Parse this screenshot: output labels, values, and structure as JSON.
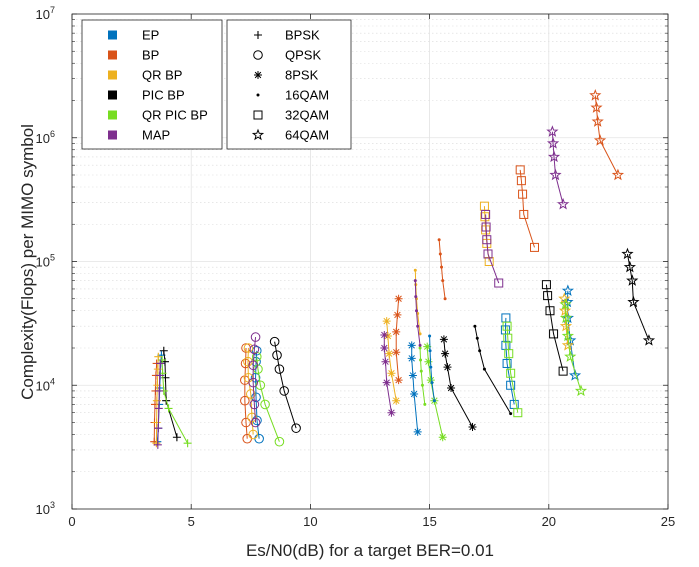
{
  "chart_data": {
    "type": "line",
    "xlabel": "Es/N0(dB) for a target BER=0.01",
    "ylabel": "Complexity(Flops) per MIMO symbol",
    "xlim": [
      0,
      25
    ],
    "ylim": [
      1000,
      10000000
    ],
    "y_scale": "log",
    "grid": true,
    "x_ticks": [
      "0",
      "5",
      "10",
      "15",
      "20",
      "25"
    ],
    "y_ticks": [
      {
        "base": "10",
        "exp": "3"
      },
      {
        "base": "10",
        "exp": "4"
      },
      {
        "base": "10",
        "exp": "5"
      },
      {
        "base": "10",
        "exp": "6"
      },
      {
        "base": "10",
        "exp": "7"
      }
    ],
    "legend_algorithms": [
      {
        "name": "EP",
        "color": "#0072BD"
      },
      {
        "name": "BP",
        "color": "#D95319"
      },
      {
        "name": "QR BP",
        "color": "#EDB120"
      },
      {
        "name": "PIC BP",
        "color": "#000000"
      },
      {
        "name": "QR PIC BP",
        "color": "#77DD22"
      },
      {
        "name": "MAP",
        "color": "#7E2F8E"
      }
    ],
    "legend_modulations": [
      {
        "name": "BPSK",
        "marker": "plus"
      },
      {
        "name": "QPSK",
        "marker": "circle"
      },
      {
        "name": "8PSK",
        "marker": "asterisk"
      },
      {
        "name": "16QAM",
        "marker": "point"
      },
      {
        "name": "32QAM",
        "marker": "square"
      },
      {
        "name": "64QAM",
        "marker": "star"
      }
    ],
    "legend_placement": "top-left",
    "series": [
      {
        "algorithm": "EP",
        "modulation": "BPSK",
        "points": [
          [
            3.75,
            17500
          ],
          [
            3.72,
            15000
          ],
          [
            3.7,
            12000
          ],
          [
            3.68,
            9500
          ],
          [
            3.66,
            7000
          ],
          [
            3.62,
            4500
          ],
          [
            3.58,
            3500
          ]
        ]
      },
      {
        "algorithm": "BP",
        "modulation": "BPSK",
        "points": [
          [
            3.55,
            15000
          ],
          [
            3.52,
            12000
          ],
          [
            3.5,
            9000
          ],
          [
            3.48,
            7000
          ],
          [
            3.46,
            5000
          ],
          [
            3.45,
            3500
          ]
        ]
      },
      {
        "algorithm": "QR BP",
        "modulation": "BPSK",
        "points": [
          [
            3.62,
            17000
          ],
          [
            3.6,
            13500
          ],
          [
            3.58,
            10000
          ],
          [
            3.56,
            7500
          ],
          [
            3.55,
            5000
          ],
          [
            3.54,
            3400
          ]
        ]
      },
      {
        "algorithm": "PIC BP",
        "modulation": "BPSK",
        "points": [
          [
            3.85,
            19000
          ],
          [
            3.9,
            15500
          ],
          [
            3.92,
            11500
          ],
          [
            3.95,
            7500
          ],
          [
            4.4,
            3800
          ]
        ]
      },
      {
        "algorithm": "QR PIC BP",
        "modulation": "BPSK",
        "points": [
          [
            3.78,
            16000
          ],
          [
            3.8,
            12500
          ],
          [
            3.85,
            9000
          ],
          [
            4.05,
            6500
          ],
          [
            4.85,
            3400
          ]
        ]
      },
      {
        "algorithm": "MAP",
        "modulation": "BPSK",
        "points": [
          [
            3.7,
            15000
          ],
          [
            3.68,
            12000
          ],
          [
            3.66,
            9000
          ],
          [
            3.64,
            6500
          ],
          [
            3.62,
            4500
          ],
          [
            3.6,
            3300
          ]
        ]
      },
      {
        "algorithm": "EP",
        "modulation": "QPSK",
        "points": [
          [
            7.75,
            19000
          ],
          [
            7.72,
            15500
          ],
          [
            7.7,
            11500
          ],
          [
            7.72,
            8000
          ],
          [
            7.76,
            5200
          ],
          [
            7.85,
            3700
          ]
        ]
      },
      {
        "algorithm": "BP",
        "modulation": "QPSK",
        "points": [
          [
            7.3,
            20000
          ],
          [
            7.28,
            15000
          ],
          [
            7.25,
            11000
          ],
          [
            7.25,
            7500
          ],
          [
            7.3,
            5000
          ],
          [
            7.35,
            3700
          ]
        ]
      },
      {
        "algorithm": "QR BP",
        "modulation": "QPSK",
        "points": [
          [
            7.4,
            20000
          ],
          [
            7.38,
            15500
          ],
          [
            7.4,
            11500
          ],
          [
            7.5,
            8500
          ],
          [
            7.55,
            5500
          ],
          [
            7.6,
            4000
          ]
        ]
      },
      {
        "algorithm": "PIC BP",
        "modulation": "QPSK",
        "points": [
          [
            8.5,
            22500
          ],
          [
            8.6,
            17500
          ],
          [
            8.7,
            13500
          ],
          [
            8.9,
            9000
          ],
          [
            9.4,
            4500
          ]
        ]
      },
      {
        "algorithm": "QR PIC BP",
        "modulation": "QPSK",
        "points": [
          [
            7.75,
            17000
          ],
          [
            7.8,
            13500
          ],
          [
            7.9,
            10000
          ],
          [
            8.1,
            7000
          ],
          [
            8.7,
            3500
          ]
        ]
      },
      {
        "algorithm": "MAP",
        "modulation": "QPSK",
        "points": [
          [
            7.7,
            24500
          ],
          [
            7.65,
            19500
          ],
          [
            7.6,
            14500
          ],
          [
            7.6,
            10500
          ],
          [
            7.65,
            7000
          ],
          [
            7.7,
            5000
          ]
        ]
      },
      {
        "algorithm": "EP",
        "modulation": "8PSK",
        "points": [
          [
            14.25,
            21000
          ],
          [
            14.25,
            16500
          ],
          [
            14.3,
            12000
          ],
          [
            14.35,
            8500
          ],
          [
            14.5,
            4200
          ]
        ]
      },
      {
        "algorithm": "BP",
        "modulation": "8PSK",
        "points": [
          [
            13.7,
            50000
          ],
          [
            13.65,
            37000
          ],
          [
            13.6,
            27000
          ],
          [
            13.6,
            18500
          ],
          [
            13.7,
            11000
          ]
        ]
      },
      {
        "algorithm": "QR BP",
        "modulation": "8PSK",
        "points": [
          [
            13.2,
            33000
          ],
          [
            13.25,
            25000
          ],
          [
            13.3,
            18000
          ],
          [
            13.4,
            12500
          ],
          [
            13.6,
            7500
          ]
        ]
      },
      {
        "algorithm": "PIC BP",
        "modulation": "8PSK",
        "points": [
          [
            15.6,
            23500
          ],
          [
            15.65,
            18000
          ],
          [
            15.75,
            14000
          ],
          [
            15.9,
            9500
          ],
          [
            16.8,
            4600
          ]
        ]
      },
      {
        "algorithm": "QR PIC BP",
        "modulation": "8PSK",
        "points": [
          [
            14.9,
            20500
          ],
          [
            14.95,
            15500
          ],
          [
            15.05,
            11000
          ],
          [
            15.2,
            7500
          ],
          [
            15.55,
            3800
          ]
        ]
      },
      {
        "algorithm": "MAP",
        "modulation": "8PSK",
        "points": [
          [
            13.1,
            25500
          ],
          [
            13.1,
            20000
          ],
          [
            13.15,
            15500
          ],
          [
            13.2,
            10500
          ],
          [
            13.4,
            6000
          ]
        ]
      },
      {
        "algorithm": "EP",
        "modulation": "16QAM",
        "points": [
          [
            15.0,
            25000
          ],
          [
            15.02,
            19000
          ],
          [
            15.05,
            14000
          ],
          [
            15.1,
            10500
          ],
          [
            15.2,
            7500
          ]
        ]
      },
      {
        "algorithm": "BP",
        "modulation": "16QAM",
        "points": [
          [
            15.4,
            150000
          ],
          [
            15.45,
            115000
          ],
          [
            15.5,
            90000
          ],
          [
            15.55,
            70000
          ],
          [
            15.65,
            50000
          ]
        ]
      },
      {
        "algorithm": "QR BP",
        "modulation": "16QAM",
        "points": [
          [
            14.4,
            85000
          ],
          [
            14.42,
            65000
          ],
          [
            14.45,
            50000
          ],
          [
            14.5,
            38000
          ],
          [
            14.6,
            26000
          ]
        ]
      },
      {
        "algorithm": "PIC BP",
        "modulation": "16QAM",
        "points": [
          [
            16.9,
            30000
          ],
          [
            17.0,
            24000
          ],
          [
            17.1,
            19000
          ],
          [
            17.3,
            13500
          ],
          [
            18.4,
            5900
          ]
        ]
      },
      {
        "algorithm": "QR PIC BP",
        "modulation": "16QAM",
        "points": [
          [
            14.6,
            20000
          ],
          [
            14.62,
            16000
          ],
          [
            14.65,
            13000
          ],
          [
            14.7,
            10000
          ],
          [
            14.8,
            7000
          ]
        ]
      },
      {
        "algorithm": "MAP",
        "modulation": "16QAM",
        "points": [
          [
            14.4,
            70000
          ],
          [
            14.42,
            52000
          ],
          [
            14.45,
            40000
          ],
          [
            14.5,
            30000
          ],
          [
            14.6,
            21000
          ]
        ]
      },
      {
        "algorithm": "EP",
        "modulation": "32QAM",
        "points": [
          [
            18.2,
            35000
          ],
          [
            18.18,
            28000
          ],
          [
            18.2,
            21000
          ],
          [
            18.25,
            15000
          ],
          [
            18.4,
            10000
          ],
          [
            18.55,
            7000
          ]
        ]
      },
      {
        "algorithm": "BP",
        "modulation": "32QAM",
        "points": [
          [
            18.8,
            550000
          ],
          [
            18.85,
            450000
          ],
          [
            18.9,
            350000
          ],
          [
            18.95,
            240000
          ],
          [
            19.4,
            130000
          ]
        ]
      },
      {
        "algorithm": "QR BP",
        "modulation": "32QAM",
        "points": [
          [
            17.3,
            280000
          ],
          [
            17.32,
            230000
          ],
          [
            17.35,
            180000
          ],
          [
            17.4,
            140000
          ],
          [
            17.5,
            100000
          ]
        ]
      },
      {
        "algorithm": "PIC BP",
        "modulation": "32QAM",
        "points": [
          [
            19.9,
            65000
          ],
          [
            19.95,
            53000
          ],
          [
            20.05,
            40000
          ],
          [
            20.2,
            26000
          ],
          [
            20.6,
            13000
          ]
        ]
      },
      {
        "algorithm": "QR PIC BP",
        "modulation": "32QAM",
        "points": [
          [
            18.25,
            30000
          ],
          [
            18.28,
            24000
          ],
          [
            18.32,
            18000
          ],
          [
            18.4,
            12500
          ],
          [
            18.7,
            6000
          ]
        ]
      },
      {
        "algorithm": "MAP",
        "modulation": "32QAM",
        "points": [
          [
            17.35,
            240000
          ],
          [
            17.37,
            190000
          ],
          [
            17.4,
            150000
          ],
          [
            17.45,
            115000
          ],
          [
            17.9,
            67000
          ]
        ]
      },
      {
        "algorithm": "EP",
        "modulation": "64QAM",
        "points": [
          [
            20.8,
            58000
          ],
          [
            20.78,
            47000
          ],
          [
            20.8,
            35000
          ],
          [
            20.9,
            23000
          ],
          [
            21.1,
            12000
          ]
        ]
      },
      {
        "algorithm": "BP",
        "modulation": "64QAM",
        "points": [
          [
            21.95,
            2200000
          ],
          [
            22.0,
            1750000
          ],
          [
            22.05,
            1350000
          ],
          [
            22.15,
            950000
          ],
          [
            22.9,
            500000
          ]
        ]
      },
      {
        "algorithm": "QR BP",
        "modulation": "64QAM",
        "points": [
          [
            20.65,
            50000
          ],
          [
            20.68,
            40000
          ],
          [
            20.72,
            30000
          ],
          [
            20.8,
            21000
          ]
        ]
      },
      {
        "algorithm": "PIC BP",
        "modulation": "64QAM",
        "points": [
          [
            23.3,
            115000
          ],
          [
            23.4,
            90000
          ],
          [
            23.5,
            70000
          ],
          [
            23.55,
            47000
          ],
          [
            24.2,
            23000
          ]
        ]
      },
      {
        "algorithm": "QR PIC BP",
        "modulation": "64QAM",
        "points": [
          [
            20.7,
            45000
          ],
          [
            20.72,
            35000
          ],
          [
            20.8,
            25000
          ],
          [
            20.9,
            17000
          ],
          [
            21.35,
            9000
          ]
        ]
      },
      {
        "algorithm": "MAP",
        "modulation": "64QAM",
        "points": [
          [
            20.15,
            1120000
          ],
          [
            20.18,
            900000
          ],
          [
            20.22,
            700000
          ],
          [
            20.28,
            500000
          ],
          [
            20.6,
            290000
          ]
        ]
      }
    ]
  }
}
